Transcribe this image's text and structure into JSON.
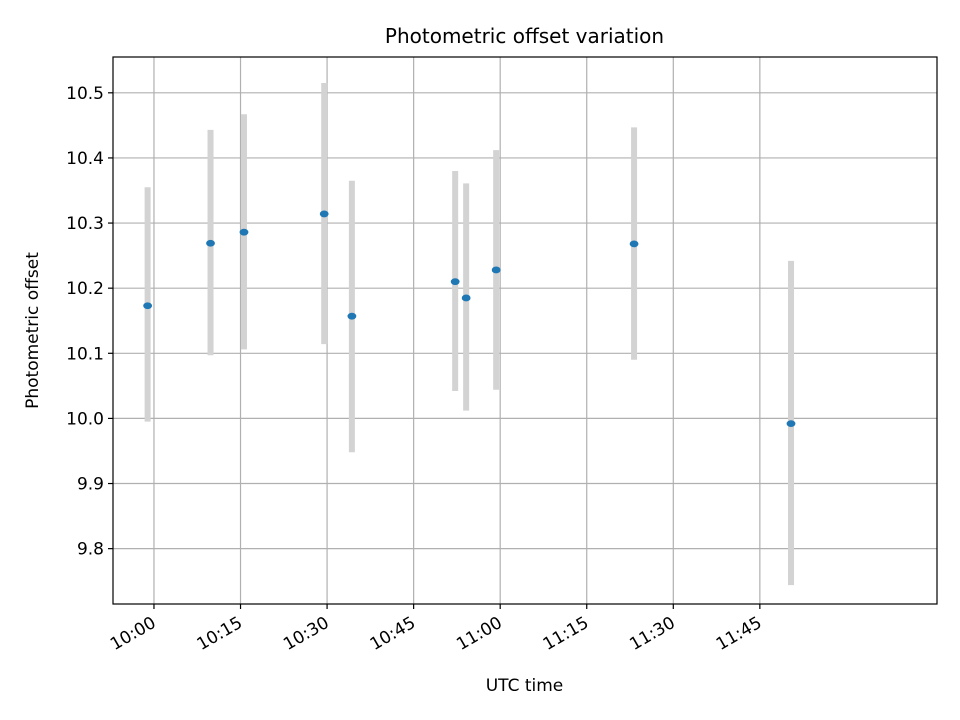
{
  "chart_data": {
    "type": "scatter",
    "title": "Photometric offset variation",
    "xlabel": "UTC time",
    "ylabel": "Photometric offset",
    "x_unit": "time (HH:MM)",
    "x_ticks": [
      "10:00",
      "10:15",
      "10:30",
      "10:45",
      "11:00",
      "11:15",
      "11:30",
      "11:45"
    ],
    "y_ticks": [
      9.8,
      9.9,
      10.0,
      10.1,
      10.2,
      10.3,
      10.4,
      10.5
    ],
    "xlim": [
      "09:52.9",
      "12:15.7"
    ],
    "ylim": [
      9.715,
      10.555
    ],
    "grid": true,
    "colors": {
      "point": "#1f77b4",
      "errorbar": "#d3d3d3"
    },
    "points": [
      {
        "x": "09:58.9",
        "y": 10.173,
        "ylow": 9.995,
        "yhigh": 10.355
      },
      {
        "x": "10:09.8",
        "y": 10.269,
        "ylow": 10.097,
        "yhigh": 10.443
      },
      {
        "x": "10:15.6",
        "y": 10.286,
        "ylow": 10.106,
        "yhigh": 10.467
      },
      {
        "x": "10:29.5",
        "y": 10.314,
        "ylow": 10.114,
        "yhigh": 10.515
      },
      {
        "x": "10:34.3",
        "y": 10.157,
        "ylow": 9.948,
        "yhigh": 10.365
      },
      {
        "x": "10:52.2",
        "y": 10.21,
        "ylow": 10.042,
        "yhigh": 10.38
      },
      {
        "x": "10:54.1",
        "y": 10.185,
        "ylow": 10.012,
        "yhigh": 10.361
      },
      {
        "x": "10:59.3",
        "y": 10.228,
        "ylow": 10.044,
        "yhigh": 10.412
      },
      {
        "x": "11:23.2",
        "y": 10.268,
        "ylow": 10.09,
        "yhigh": 10.447
      },
      {
        "x": "11:50.4",
        "y": 9.992,
        "ylow": 9.744,
        "yhigh": 10.242
      }
    ]
  }
}
